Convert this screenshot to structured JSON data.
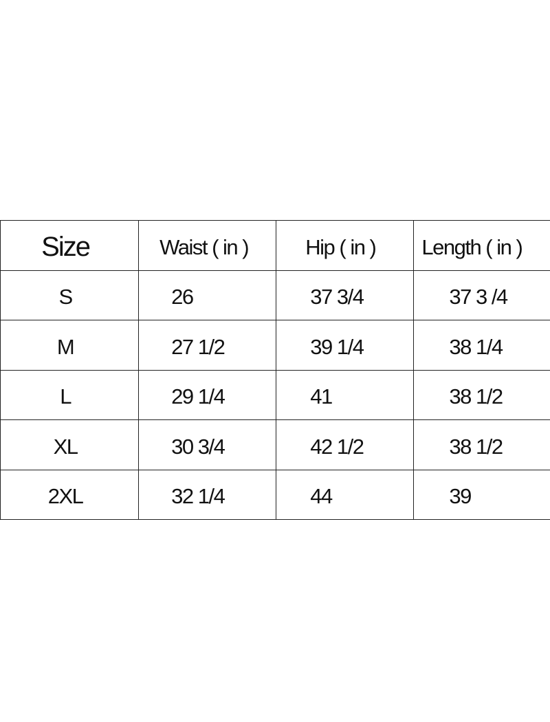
{
  "table": {
    "headers": [
      "Size",
      "Waist ( in )",
      "Hip ( in )",
      "Length ( in )"
    ],
    "rows": [
      [
        "S",
        "26",
        "37 3/4",
        "37 3 /4"
      ],
      [
        "M",
        "27 1/2",
        "39 1/4",
        "38 1/4"
      ],
      [
        "L",
        "29 1/4",
        "41",
        "38 1/2"
      ],
      [
        "XL",
        "30 3/4",
        "42 1/2",
        "38 1/2"
      ],
      [
        "2XL",
        "32 1/4",
        "44",
        "39"
      ]
    ]
  }
}
